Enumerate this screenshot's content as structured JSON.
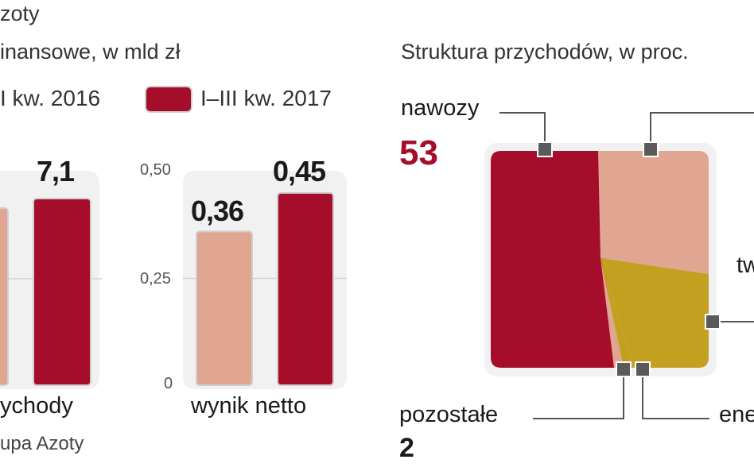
{
  "header": {
    "company": "zoty",
    "finance_title": "inansowe, w mld zł",
    "structure_title": "Struktura przychodów, w proc."
  },
  "legend": {
    "series_2016": "I kw. 2016",
    "series_2017": "I–III kw. 2017"
  },
  "source": "upa Azoty",
  "colors": {
    "series_2016": "#e0a691",
    "series_2017": "#a60d2b",
    "nawozy": "#a60d2b",
    "tworzywa": "#e0a691",
    "chemia": "#c4a021",
    "pozostale": "#e0a691",
    "energetyka": "#c4a021"
  },
  "chart_data": [
    {
      "type": "bar",
      "categories": [
        "ychody"
      ],
      "series": [
        {
          "name": "I kw. 2016",
          "values": [
            null
          ]
        },
        {
          "name": "I–III kw. 2017",
          "values": [
            7.1
          ]
        }
      ],
      "value_labels": [
        "7,1"
      ],
      "grid": true
    },
    {
      "type": "bar",
      "categories": [
        "wynik netto"
      ],
      "series": [
        {
          "name": "I kw. 2016",
          "values": [
            0.36
          ]
        },
        {
          "name": "I–III kw. 2017",
          "values": [
            0.45
          ]
        }
      ],
      "value_labels": [
        "0,36",
        "0,45"
      ],
      "yticks": [
        "0",
        "0,25",
        "0,50"
      ],
      "ylim": [
        0,
        0.5
      ],
      "grid": true
    },
    {
      "type": "treemap",
      "title": "Struktura przychodów, w proc.",
      "segments": [
        {
          "label": "nawozy",
          "value": 53,
          "value_label": "53"
        },
        {
          "label": "tw",
          "value": null
        },
        {
          "label": "",
          "value": null
        },
        {
          "label": "pozostałe",
          "value": 2,
          "value_label": "2"
        },
        {
          "label": "ene",
          "value": null
        }
      ]
    }
  ]
}
